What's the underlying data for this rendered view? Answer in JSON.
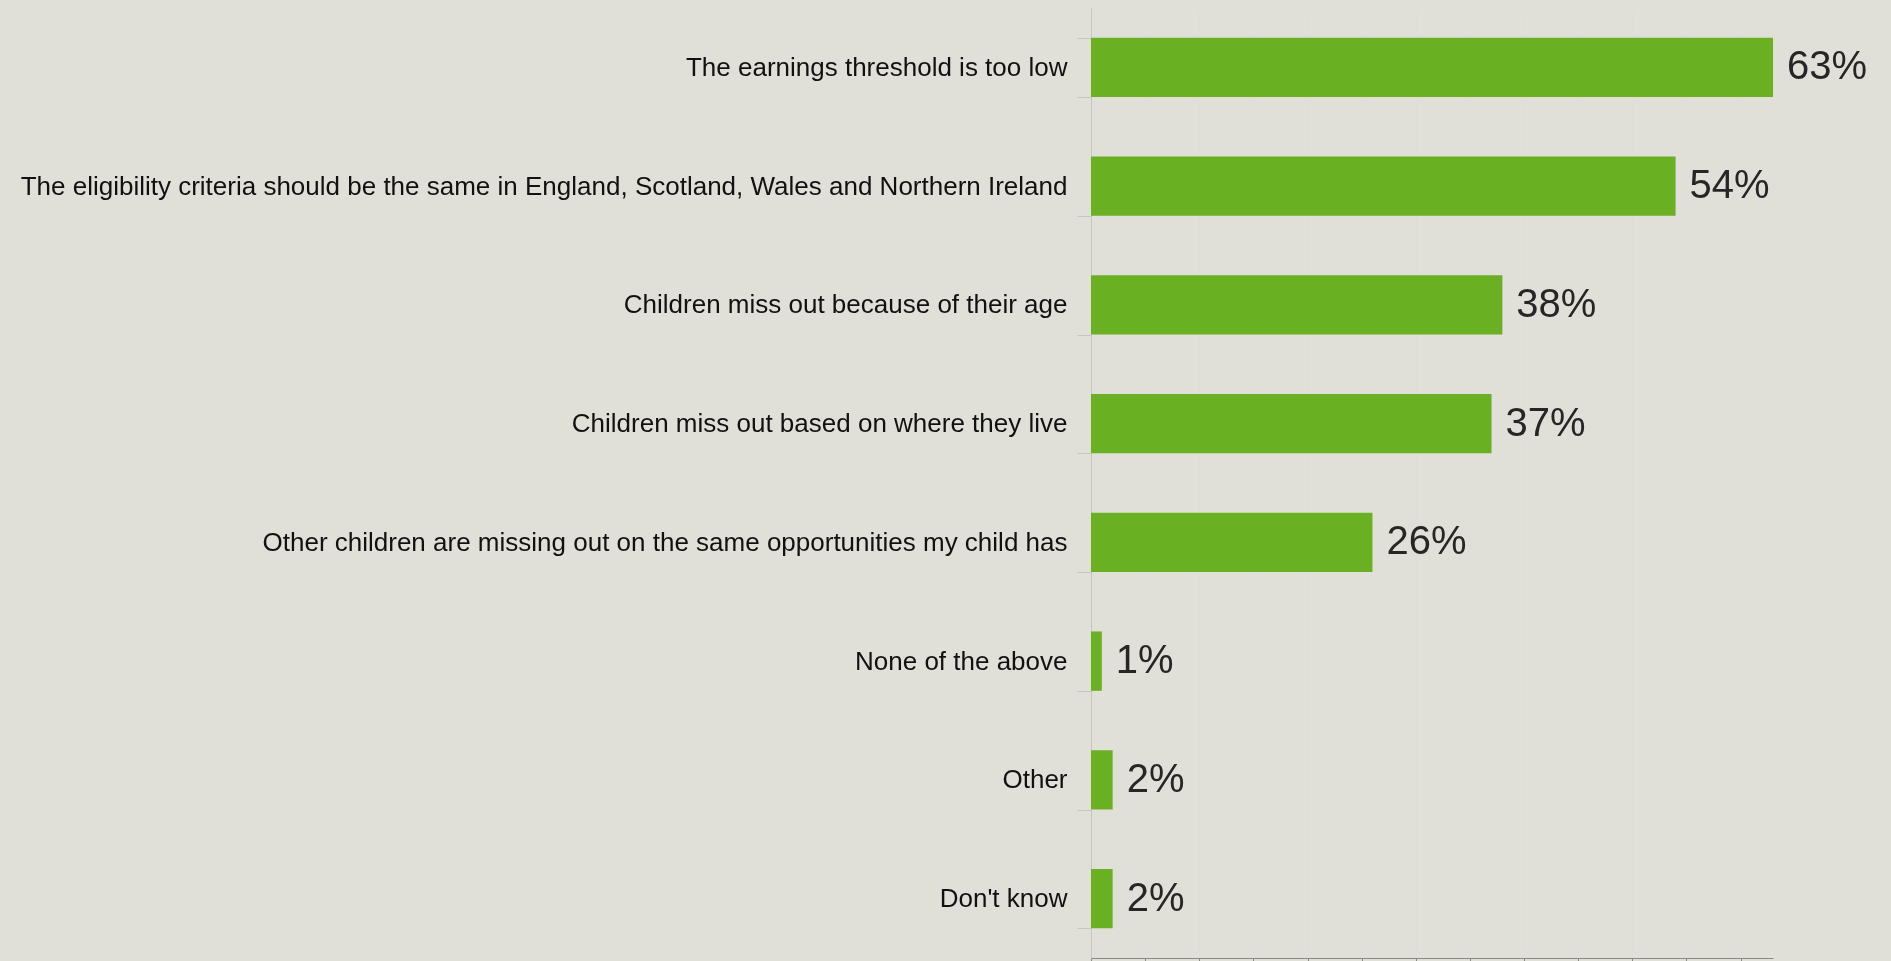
{
  "chart_data": {
    "type": "bar",
    "orientation": "horizontal",
    "categories": [
      "The earnings threshold is too low",
      "The eligibility criteria should be the same in England, Scotland, Wales and Northern Ireland",
      "Children miss out because of their age",
      "Children miss out based on where they live",
      "Other children are missing out on the same opportunities my child has",
      "None of the above",
      "Other",
      "Don't know"
    ],
    "values": [
      63,
      54,
      38,
      37,
      26,
      1,
      2,
      2
    ],
    "value_labels": [
      "63%",
      "54%",
      "38%",
      "37%",
      "26%",
      "1%",
      "2%",
      "2%"
    ],
    "color": "#6ab023"
  }
}
